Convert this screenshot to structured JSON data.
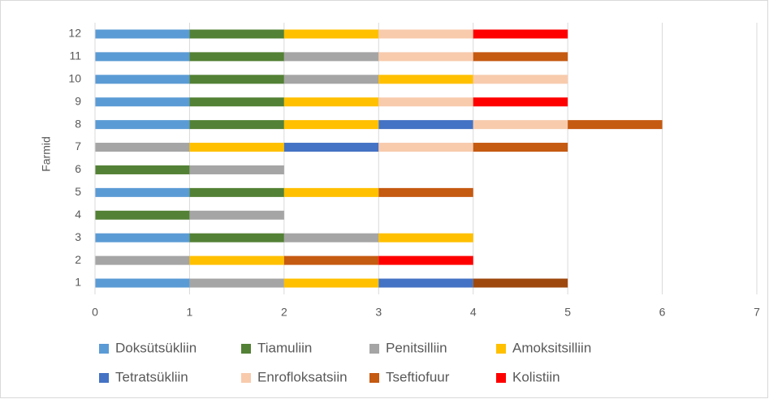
{
  "chart_data": {
    "type": "stacked-barh",
    "y_label": "Farmid",
    "xlim": [
      0,
      7
    ],
    "xticks": [
      0,
      1,
      2,
      3,
      4,
      5,
      6,
      7
    ],
    "grid": true,
    "legend": "bottom",
    "series": [
      {
        "name": "Doksütsükliin",
        "color": "#5b9bd5"
      },
      {
        "name": "Tiamuliin",
        "color": "#538135"
      },
      {
        "name": "Penitsilliin",
        "color": "#a5a5a5"
      },
      {
        "name": "Amoksitsilliin",
        "color": "#ffc000"
      },
      {
        "name": "Tetratsükliin",
        "color": "#4472c4"
      },
      {
        "name": "Enrofloksatsiin",
        "color": "#f8cbad"
      },
      {
        "name": "Tseftiofuur",
        "color": "#c55a11"
      },
      {
        "name": "Kolistiin",
        "color": "#ff0000"
      }
    ],
    "bars": [
      {
        "category": "1",
        "segments": [
          {
            "series": "Doksütsükliin",
            "value": 1
          },
          {
            "series": "Penitsilliin",
            "value": 1
          },
          {
            "series": "Amoksitsilliin",
            "value": 1
          },
          {
            "series": "Tetratsükliin",
            "value": 1
          },
          {
            "series": "Tseftiofuur",
            "value": 1,
            "color": "#9e480e"
          }
        ]
      },
      {
        "category": "2",
        "segments": [
          {
            "series": "Penitsilliin",
            "value": 1
          },
          {
            "series": "Amoksitsilliin",
            "value": 1
          },
          {
            "series": "Tseftiofuur",
            "value": 1
          },
          {
            "series": "Kolistiin",
            "value": 1
          }
        ]
      },
      {
        "category": "3",
        "segments": [
          {
            "series": "Doksütsükliin",
            "value": 1
          },
          {
            "series": "Tiamuliin",
            "value": 1
          },
          {
            "series": "Penitsilliin",
            "value": 1
          },
          {
            "series": "Amoksitsilliin",
            "value": 1
          }
        ]
      },
      {
        "category": "4",
        "segments": [
          {
            "series": "Tiamuliin",
            "value": 1
          },
          {
            "series": "Penitsilliin",
            "value": 1
          }
        ]
      },
      {
        "category": "5",
        "segments": [
          {
            "series": "Doksütsükliin",
            "value": 1
          },
          {
            "series": "Tiamuliin",
            "value": 1
          },
          {
            "series": "Amoksitsilliin",
            "value": 1
          },
          {
            "series": "Tseftiofuur",
            "value": 1
          }
        ]
      },
      {
        "category": "6",
        "segments": [
          {
            "series": "Tiamuliin",
            "value": 1
          },
          {
            "series": "Penitsilliin",
            "value": 1
          }
        ]
      },
      {
        "category": "7",
        "segments": [
          {
            "series": "Penitsilliin",
            "value": 1
          },
          {
            "series": "Amoksitsilliin",
            "value": 1
          },
          {
            "series": "Tetratsükliin",
            "value": 1
          },
          {
            "series": "Enrofloksatsiin",
            "value": 1
          },
          {
            "series": "Tseftiofuur",
            "value": 1
          }
        ]
      },
      {
        "category": "8",
        "segments": [
          {
            "series": "Doksütsükliin",
            "value": 1
          },
          {
            "series": "Tiamuliin",
            "value": 1
          },
          {
            "series": "Amoksitsilliin",
            "value": 1
          },
          {
            "series": "Tetratsükliin",
            "value": 1
          },
          {
            "series": "Enrofloksatsiin",
            "value": 1
          },
          {
            "series": "Tseftiofuur",
            "value": 1
          }
        ]
      },
      {
        "category": "9",
        "segments": [
          {
            "series": "Doksütsükliin",
            "value": 1
          },
          {
            "series": "Tiamuliin",
            "value": 1
          },
          {
            "series": "Amoksitsilliin",
            "value": 1
          },
          {
            "series": "Enrofloksatsiin",
            "value": 1
          },
          {
            "series": "Kolistiin",
            "value": 1
          }
        ]
      },
      {
        "category": "10",
        "segments": [
          {
            "series": "Doksütsükliin",
            "value": 1
          },
          {
            "series": "Tiamuliin",
            "value": 1
          },
          {
            "series": "Penitsilliin",
            "value": 1
          },
          {
            "series": "Amoksitsilliin",
            "value": 1
          },
          {
            "series": "Enrofloksatsiin",
            "value": 1
          }
        ]
      },
      {
        "category": "11",
        "segments": [
          {
            "series": "Doksütsükliin",
            "value": 1
          },
          {
            "series": "Tiamuliin",
            "value": 1
          },
          {
            "series": "Penitsilliin",
            "value": 1
          },
          {
            "series": "Enrofloksatsiin",
            "value": 1
          },
          {
            "series": "Tseftiofuur",
            "value": 1
          }
        ]
      },
      {
        "category": "12",
        "segments": [
          {
            "series": "Doksütsükliin",
            "value": 1
          },
          {
            "series": "Tiamuliin",
            "value": 1
          },
          {
            "series": "Amoksitsilliin",
            "value": 1
          },
          {
            "series": "Enrofloksatsiin",
            "value": 1
          },
          {
            "series": "Kolistiin",
            "value": 1
          }
        ]
      }
    ]
  }
}
